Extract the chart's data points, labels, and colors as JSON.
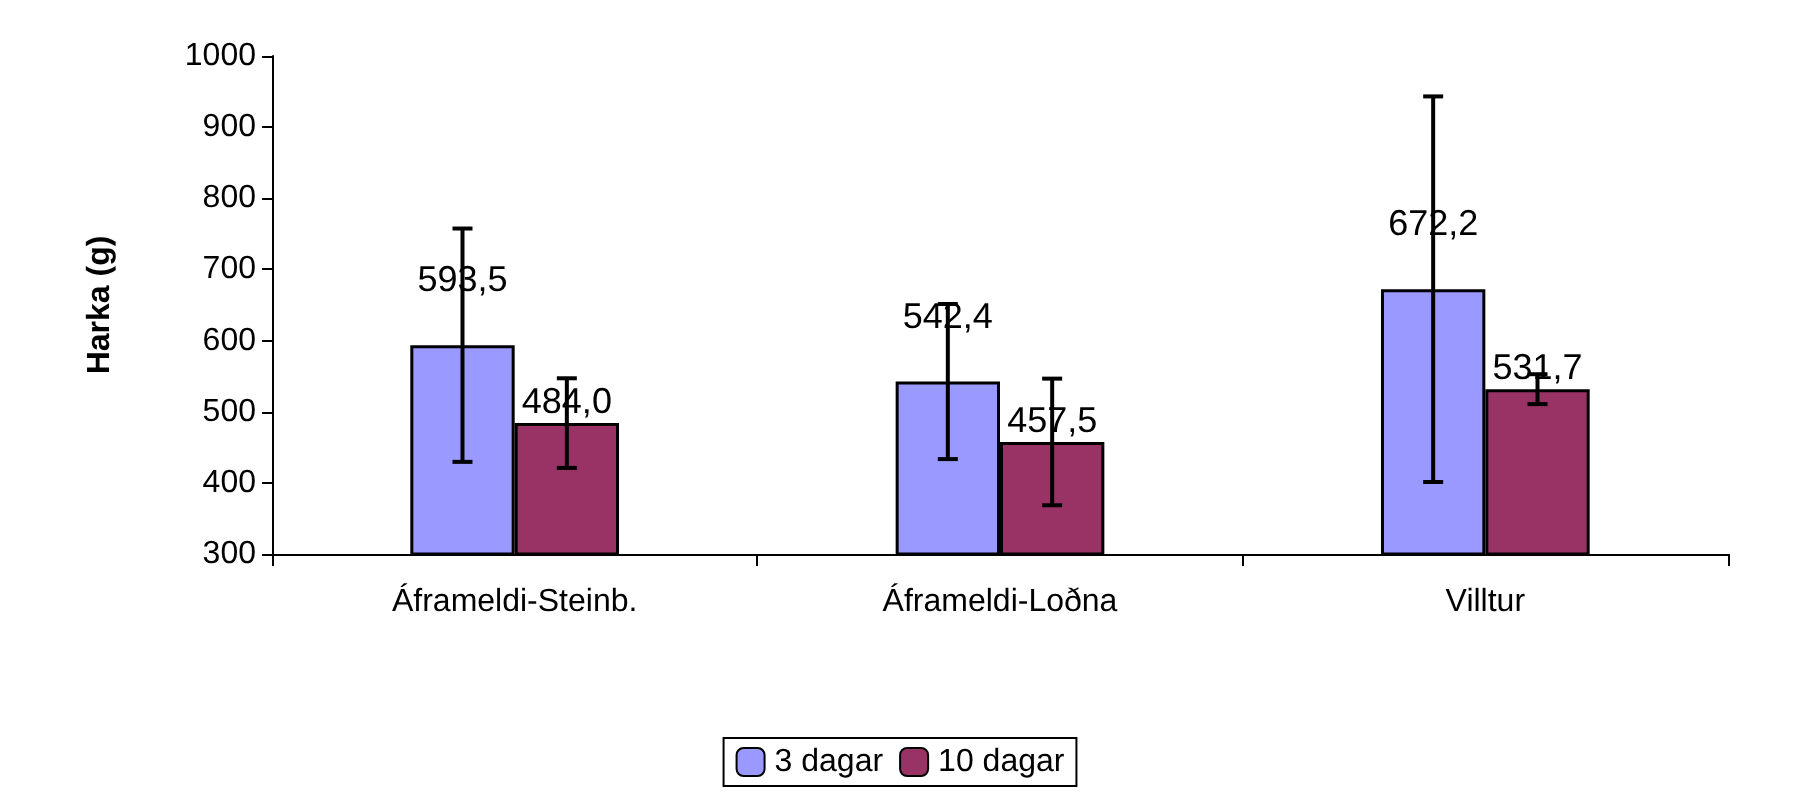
{
  "chart_data": {
    "type": "bar",
    "ylabel": "Harka (g)",
    "categories": [
      "Áframeldi-Steinb.",
      "Áframeldi-Loðna",
      "Villtur"
    ],
    "series": [
      {
        "name": "3 dagar",
        "color": "#9999ff",
        "values": [
          593.5,
          542.4,
          672.2
        ],
        "errors": [
          164,
          109,
          271
        ]
      },
      {
        "name": "10 dagar",
        "color": "#993366",
        "values": [
          484.0,
          457.5,
          531.7
        ],
        "errors": [
          63,
          89,
          21
        ]
      }
    ],
    "value_labels": [
      [
        "593,5",
        "542,4",
        "672,2"
      ],
      [
        "484,0",
        "457,5",
        "531,7"
      ]
    ],
    "ylim": [
      300,
      1000
    ],
    "yticks": [
      300,
      400,
      500,
      600,
      700,
      800,
      900,
      1000
    ],
    "grid": false,
    "legend": "bottom"
  }
}
